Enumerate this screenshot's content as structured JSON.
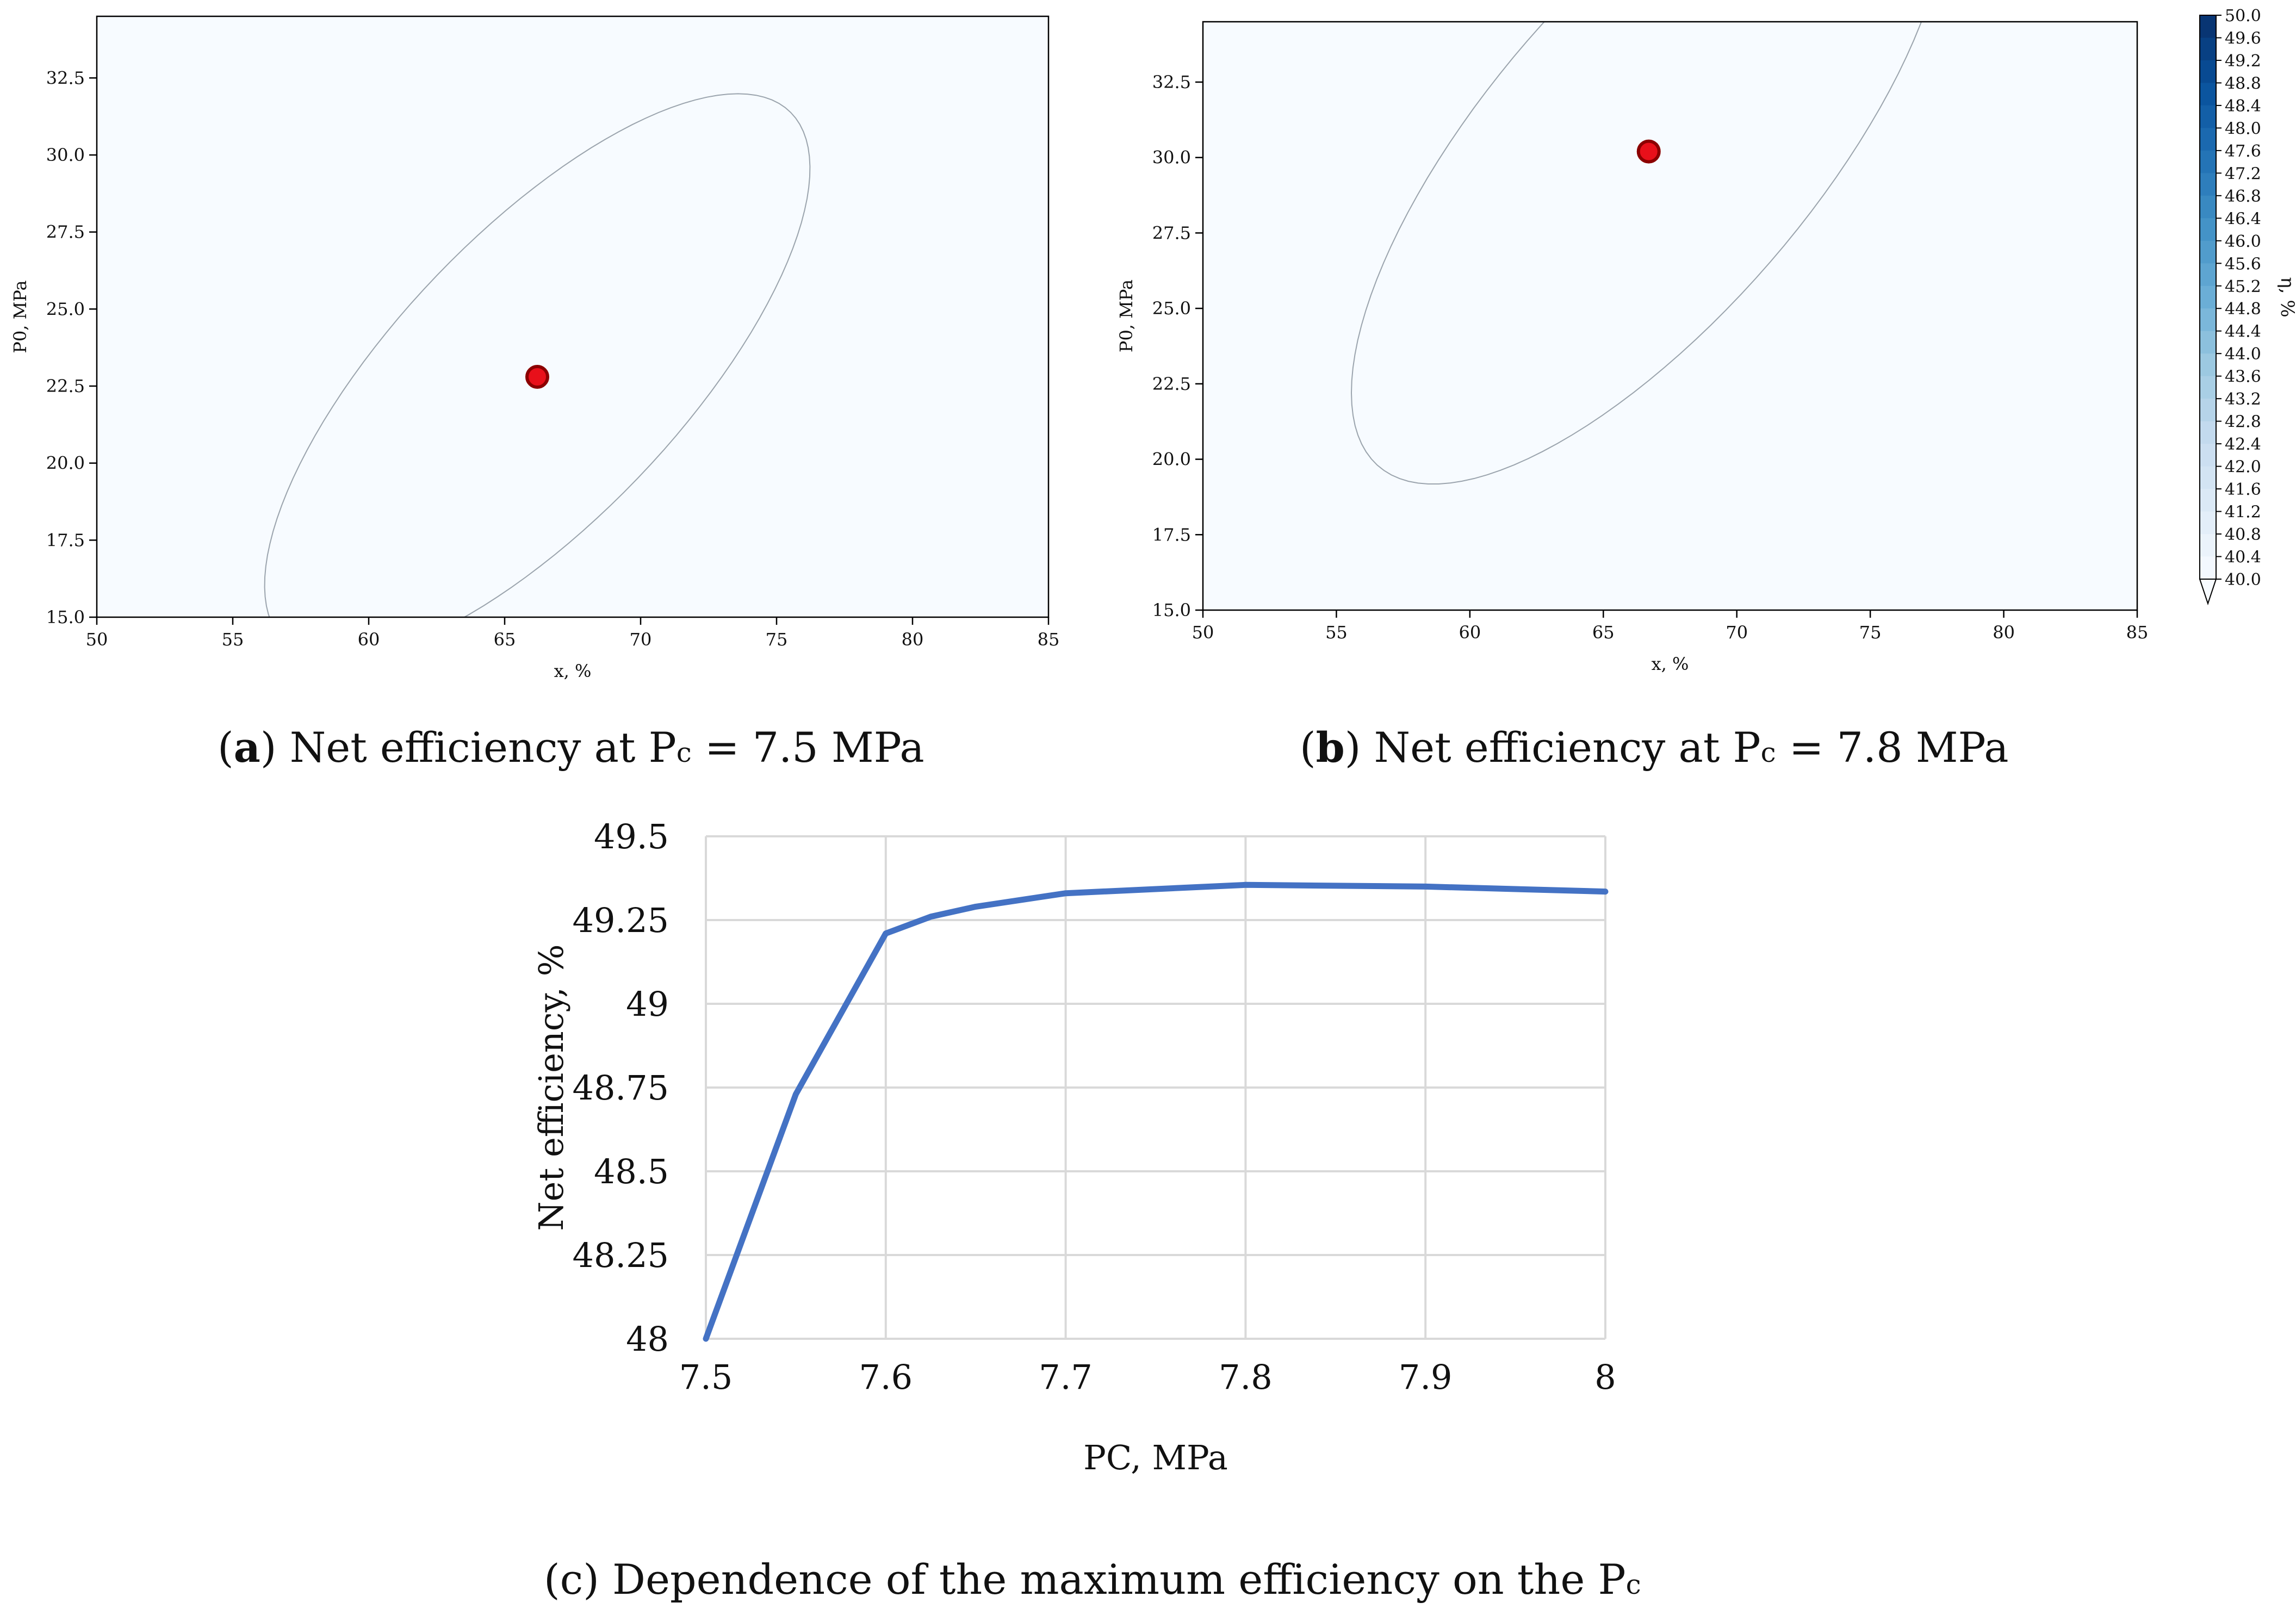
{
  "chart_data": [
    {
      "type": "contour",
      "panel": "a",
      "title": "Net efficiency at Pc = 7.5 MPa",
      "xlabel": "x, %",
      "ylabel": "P0, MPa",
      "xlim": [
        50,
        85
      ],
      "ylim": [
        15,
        34.5
      ],
      "xticks": [
        "50",
        "55",
        "60",
        "65",
        "70",
        "75",
        "80",
        "85"
      ],
      "yticks": [
        "15.0",
        "17.5",
        "20.0",
        "22.5",
        "25.0",
        "27.5",
        "30.0",
        "32.5"
      ],
      "optimum": {
        "x": 66.2,
        "y": 22.8
      },
      "peak_efficiency": 48.0
    },
    {
      "type": "contour",
      "panel": "b",
      "title": "Net efficiency at Pc = 7.8 MPa",
      "xlabel": "x, %",
      "ylabel": "P0, MPa",
      "xlim": [
        50,
        85
      ],
      "ylim": [
        15,
        34.5
      ],
      "xticks": [
        "50",
        "55",
        "60",
        "65",
        "70",
        "75",
        "80",
        "85"
      ],
      "yticks": [
        "15.0",
        "17.5",
        "20.0",
        "22.5",
        "25.0",
        "27.5",
        "30.0",
        "32.5"
      ],
      "optimum": {
        "x": 66.7,
        "y": 30.2
      },
      "peak_efficiency": 49.35,
      "colorbar": {
        "label": "η, %",
        "range": [
          40.0,
          50.0
        ],
        "ticks": [
          "50.0",
          "49.6",
          "49.2",
          "48.8",
          "48.4",
          "48.0",
          "47.6",
          "47.2",
          "46.8",
          "46.4",
          "46.0",
          "45.6",
          "45.2",
          "44.8",
          "44.4",
          "44.0",
          "43.6",
          "43.2",
          "42.8",
          "42.4",
          "42.0",
          "41.6",
          "41.2",
          "40.8",
          "40.4",
          "40.0"
        ]
      }
    },
    {
      "type": "line",
      "panel": "c",
      "title": "Dependence of the maximum efficiency on the Pc",
      "xlabel": "PC, MPa",
      "ylabel": "Net efficiency, %",
      "xlim": [
        7.5,
        8.0
      ],
      "ylim": [
        48.0,
        49.5
      ],
      "xticks": [
        "7.5",
        "7.6",
        "7.7",
        "7.8",
        "7.9",
        "8"
      ],
      "yticks": [
        "48",
        "48.25",
        "48.5",
        "48.75",
        "49",
        "49.25",
        "49.5"
      ],
      "x": [
        7.5,
        7.55,
        7.6,
        7.625,
        7.65,
        7.7,
        7.8,
        7.9,
        8.0
      ],
      "y": [
        48.0,
        48.73,
        49.21,
        49.26,
        49.29,
        49.33,
        49.355,
        49.35,
        49.335
      ],
      "line_color": "#4472C4"
    }
  ],
  "captions": {
    "a": {
      "label": "a",
      "text": "Net efficiency at P",
      "sub": "c",
      "rest": " = 7.5 MPa"
    },
    "b": {
      "label": "b",
      "text": "Net efficiency at P",
      "sub": "c",
      "rest": " = 7.8 MPa"
    },
    "c": {
      "label": "c",
      "text": "Dependence of the maximum efficiency on the P",
      "sub": "c",
      "rest": ""
    }
  },
  "colors": {
    "marker_fill": "#e8101a",
    "marker_edge": "#8b0000",
    "low": "#f7fbff",
    "high": "#08306b"
  }
}
